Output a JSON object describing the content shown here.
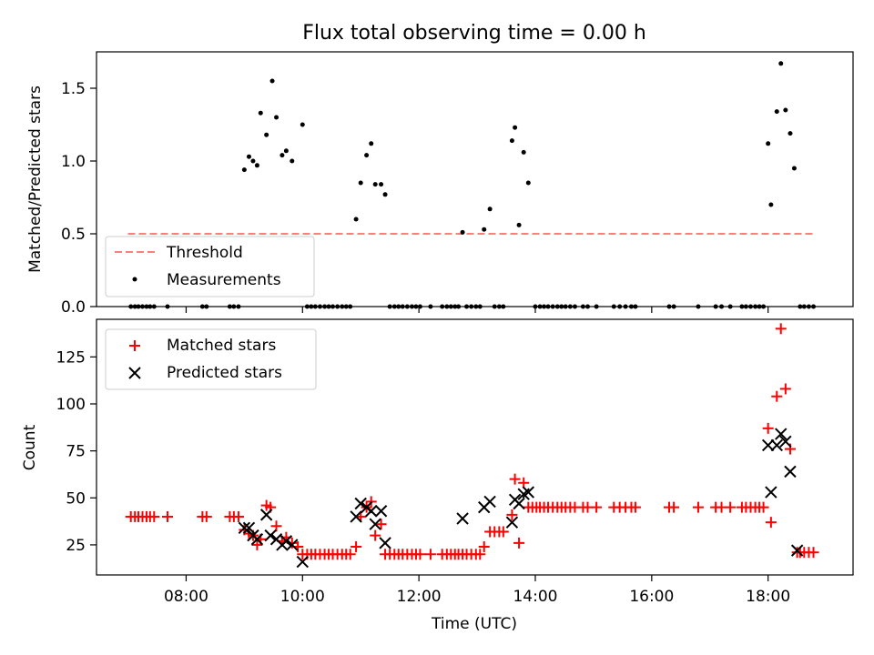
{
  "title": "Flux total observing time = 0.00 h",
  "chart_data": [
    {
      "type": "scatter",
      "ylabel": "Matched/Predicted stars",
      "ylim": [
        0,
        1.75
      ],
      "yticks": [
        0.0,
        0.5,
        1.0,
        1.5
      ],
      "ytick_labels": [
        "0.0",
        "0.5",
        "1.0",
        "1.5"
      ],
      "xlim": [
        6.46,
        19.46
      ],
      "legend": {
        "placement": "lower-left",
        "entries": [
          {
            "label": "Threshold",
            "style": "dashed-line",
            "color": "#ff7f7f"
          },
          {
            "label": "Measurements",
            "style": "dot",
            "color": "#000000"
          }
        ]
      },
      "series": [
        {
          "name": "Threshold",
          "kind": "line",
          "color": "#ff7f7f",
          "x": [
            7.0,
            18.8
          ],
          "y": [
            0.5,
            0.5
          ]
        },
        {
          "name": "Measurements",
          "kind": "dot",
          "color": "#000000",
          "points": [
            [
              7.05,
              0
            ],
            [
              7.12,
              0
            ],
            [
              7.18,
              0
            ],
            [
              7.25,
              0
            ],
            [
              7.32,
              0
            ],
            [
              7.38,
              0
            ],
            [
              7.45,
              0
            ],
            [
              7.68,
              0
            ],
            [
              8.28,
              0
            ],
            [
              8.35,
              0
            ],
            [
              8.75,
              0
            ],
            [
              8.82,
              0
            ],
            [
              8.9,
              0
            ],
            [
              9.0,
              0.94
            ],
            [
              9.08,
              1.03
            ],
            [
              9.15,
              1.0
            ],
            [
              9.22,
              0.97
            ],
            [
              9.28,
              1.33
            ],
            [
              9.38,
              1.18
            ],
            [
              9.48,
              1.55
            ],
            [
              9.55,
              1.3
            ],
            [
              9.65,
              1.04
            ],
            [
              9.72,
              1.07
            ],
            [
              9.82,
              1.0
            ],
            [
              10.0,
              1.25
            ],
            [
              10.08,
              0
            ],
            [
              10.15,
              0
            ],
            [
              10.22,
              0
            ],
            [
              10.3,
              0
            ],
            [
              10.38,
              0
            ],
            [
              10.45,
              0
            ],
            [
              10.52,
              0
            ],
            [
              10.6,
              0
            ],
            [
              10.68,
              0
            ],
            [
              10.75,
              0
            ],
            [
              10.82,
              0
            ],
            [
              10.92,
              0.6
            ],
            [
              11.0,
              0.85
            ],
            [
              11.1,
              1.04
            ],
            [
              11.18,
              1.12
            ],
            [
              11.25,
              0.84
            ],
            [
              11.35,
              0.84
            ],
            [
              11.42,
              0.77
            ],
            [
              11.5,
              0
            ],
            [
              11.58,
              0
            ],
            [
              11.65,
              0
            ],
            [
              11.72,
              0
            ],
            [
              11.8,
              0
            ],
            [
              11.88,
              0
            ],
            [
              11.95,
              0
            ],
            [
              12.02,
              0
            ],
            [
              12.2,
              0
            ],
            [
              12.4,
              0
            ],
            [
              12.48,
              0
            ],
            [
              12.55,
              0
            ],
            [
              12.62,
              0
            ],
            [
              12.68,
              0
            ],
            [
              12.75,
              0.51
            ],
            [
              12.82,
              0
            ],
            [
              12.9,
              0
            ],
            [
              12.98,
              0
            ],
            [
              13.05,
              0
            ],
            [
              13.12,
              0.53
            ],
            [
              13.22,
              0.67
            ],
            [
              13.3,
              0
            ],
            [
              13.38,
              0
            ],
            [
              13.45,
              0
            ],
            [
              13.6,
              1.14
            ],
            [
              13.65,
              1.23
            ],
            [
              13.72,
              0.56
            ],
            [
              13.8,
              1.06
            ],
            [
              13.88,
              0.85
            ],
            [
              14.0,
              0
            ],
            [
              14.08,
              0
            ],
            [
              14.15,
              0
            ],
            [
              14.22,
              0
            ],
            [
              14.3,
              0
            ],
            [
              14.38,
              0
            ],
            [
              14.45,
              0
            ],
            [
              14.52,
              0
            ],
            [
              14.6,
              0
            ],
            [
              14.68,
              0
            ],
            [
              14.82,
              0
            ],
            [
              14.9,
              0
            ],
            [
              15.05,
              0
            ],
            [
              15.35,
              0
            ],
            [
              15.45,
              0
            ],
            [
              15.55,
              0
            ],
            [
              15.65,
              0
            ],
            [
              15.72,
              0
            ],
            [
              16.3,
              0
            ],
            [
              16.38,
              0
            ],
            [
              16.8,
              0
            ],
            [
              17.1,
              0
            ],
            [
              17.2,
              0
            ],
            [
              17.35,
              0
            ],
            [
              17.55,
              0
            ],
            [
              17.62,
              0
            ],
            [
              17.7,
              0
            ],
            [
              17.78,
              0
            ],
            [
              17.85,
              0
            ],
            [
              17.92,
              0
            ],
            [
              18.0,
              1.12
            ],
            [
              18.05,
              0.7
            ],
            [
              18.15,
              1.34
            ],
            [
              18.22,
              1.67
            ],
            [
              18.3,
              1.35
            ],
            [
              18.38,
              1.19
            ],
            [
              18.45,
              0.95
            ],
            [
              18.55,
              0
            ],
            [
              18.62,
              0
            ],
            [
              18.7,
              0
            ],
            [
              18.78,
              0
            ]
          ]
        }
      ]
    },
    {
      "type": "scatter",
      "xlabel": "Time (UTC)",
      "ylabel": "Count",
      "ylim": [
        9,
        145
      ],
      "yticks": [
        25,
        50,
        75,
        100,
        125
      ],
      "ytick_labels": [
        "25",
        "50",
        "75",
        "100",
        "125"
      ],
      "xlim": [
        6.46,
        19.46
      ],
      "xticks": [
        8,
        10,
        12,
        14,
        16,
        18
      ],
      "xtick_labels": [
        "08:00",
        "10:00",
        "12:00",
        "14:00",
        "16:00",
        "18:00"
      ],
      "legend": {
        "placement": "upper-left",
        "entries": [
          {
            "label": "Matched stars",
            "style": "plus",
            "color": "#ff0000"
          },
          {
            "label": "Predicted stars",
            "style": "x",
            "color": "#000000"
          }
        ]
      },
      "series": [
        {
          "name": "Matched stars",
          "kind": "plus",
          "color": "#ff0000",
          "points": [
            [
              7.05,
              40
            ],
            [
              7.12,
              40
            ],
            [
              7.18,
              40
            ],
            [
              7.25,
              40
            ],
            [
              7.32,
              40
            ],
            [
              7.38,
              40
            ],
            [
              7.45,
              40
            ],
            [
              7.68,
              40
            ],
            [
              8.28,
              40
            ],
            [
              8.35,
              40
            ],
            [
              8.75,
              40
            ],
            [
              8.82,
              40
            ],
            [
              8.9,
              40
            ],
            [
              9.0,
              33
            ],
            [
              9.08,
              31
            ],
            [
              9.15,
              30
            ],
            [
              9.22,
              25
            ],
            [
              9.28,
              28
            ],
            [
              9.38,
              46
            ],
            [
              9.45,
              45
            ],
            [
              9.55,
              35
            ],
            [
              9.65,
              27
            ],
            [
              9.72,
              29
            ],
            [
              9.82,
              26
            ],
            [
              9.92,
              24
            ],
            [
              10.0,
              20
            ],
            [
              10.08,
              20
            ],
            [
              10.15,
              20
            ],
            [
              10.22,
              20
            ],
            [
              10.3,
              20
            ],
            [
              10.38,
              20
            ],
            [
              10.45,
              20
            ],
            [
              10.52,
              20
            ],
            [
              10.6,
              20
            ],
            [
              10.68,
              20
            ],
            [
              10.75,
              20
            ],
            [
              10.82,
              20
            ],
            [
              10.92,
              24
            ],
            [
              11.0,
              40
            ],
            [
              11.1,
              45
            ],
            [
              11.18,
              48
            ],
            [
              11.25,
              30
            ],
            [
              11.35,
              36
            ],
            [
              11.42,
              20
            ],
            [
              11.5,
              20
            ],
            [
              11.58,
              20
            ],
            [
              11.65,
              20
            ],
            [
              11.72,
              20
            ],
            [
              11.8,
              20
            ],
            [
              11.88,
              20
            ],
            [
              11.95,
              20
            ],
            [
              12.02,
              20
            ],
            [
              12.2,
              20
            ],
            [
              12.4,
              20
            ],
            [
              12.48,
              20
            ],
            [
              12.55,
              20
            ],
            [
              12.62,
              20
            ],
            [
              12.68,
              20
            ],
            [
              12.75,
              20
            ],
            [
              12.82,
              20
            ],
            [
              12.9,
              20
            ],
            [
              12.98,
              20
            ],
            [
              13.05,
              20
            ],
            [
              13.12,
              24
            ],
            [
              13.22,
              32
            ],
            [
              13.3,
              32
            ],
            [
              13.38,
              32
            ],
            [
              13.45,
              32
            ],
            [
              13.6,
              41
            ],
            [
              13.65,
              60
            ],
            [
              13.72,
              26
            ],
            [
              13.8,
              58
            ],
            [
              13.88,
              45
            ],
            [
              13.95,
              45
            ],
            [
              14.02,
              45
            ],
            [
              14.08,
              45
            ],
            [
              14.15,
              45
            ],
            [
              14.22,
              45
            ],
            [
              14.3,
              45
            ],
            [
              14.38,
              45
            ],
            [
              14.45,
              45
            ],
            [
              14.52,
              45
            ],
            [
              14.6,
              45
            ],
            [
              14.68,
              45
            ],
            [
              14.82,
              45
            ],
            [
              14.9,
              45
            ],
            [
              15.05,
              45
            ],
            [
              15.35,
              45
            ],
            [
              15.45,
              45
            ],
            [
              15.55,
              45
            ],
            [
              15.65,
              45
            ],
            [
              15.72,
              45
            ],
            [
              16.3,
              45
            ],
            [
              16.38,
              45
            ],
            [
              16.8,
              45
            ],
            [
              17.1,
              45
            ],
            [
              17.2,
              45
            ],
            [
              17.35,
              45
            ],
            [
              17.55,
              45
            ],
            [
              17.62,
              45
            ],
            [
              17.7,
              45
            ],
            [
              17.78,
              45
            ],
            [
              17.85,
              45
            ],
            [
              17.92,
              45
            ],
            [
              18.0,
              87
            ],
            [
              18.05,
              37
            ],
            [
              18.15,
              104
            ],
            [
              18.22,
              140
            ],
            [
              18.3,
              108
            ],
            [
              18.38,
              76
            ],
            [
              18.5,
              21
            ],
            [
              18.55,
              21
            ],
            [
              18.62,
              21
            ],
            [
              18.7,
              21
            ],
            [
              18.78,
              21
            ]
          ]
        },
        {
          "name": "Predicted stars",
          "kind": "x",
          "color": "#000000",
          "points": [
            [
              9.0,
              34
            ],
            [
              9.08,
              34
            ],
            [
              9.15,
              30
            ],
            [
              9.22,
              28
            ],
            [
              9.38,
              41
            ],
            [
              9.45,
              30
            ],
            [
              9.55,
              28
            ],
            [
              9.65,
              25
            ],
            [
              9.72,
              27
            ],
            [
              9.82,
              25
            ],
            [
              10.0,
              16
            ],
            [
              10.92,
              40
            ],
            [
              11.0,
              47
            ],
            [
              11.1,
              45
            ],
            [
              11.18,
              43
            ],
            [
              11.25,
              36
            ],
            [
              11.35,
              43
            ],
            [
              11.42,
              26
            ],
            [
              12.75,
              39
            ],
            [
              13.12,
              45
            ],
            [
              13.22,
              48
            ],
            [
              13.6,
              37
            ],
            [
              13.65,
              49
            ],
            [
              13.72,
              47
            ],
            [
              13.8,
              52
            ],
            [
              13.88,
              53
            ],
            [
              18.0,
              78
            ],
            [
              18.05,
              53
            ],
            [
              18.15,
              78
            ],
            [
              18.22,
              84
            ],
            [
              18.3,
              80
            ],
            [
              18.38,
              64
            ],
            [
              18.5,
              22
            ]
          ]
        }
      ]
    }
  ]
}
